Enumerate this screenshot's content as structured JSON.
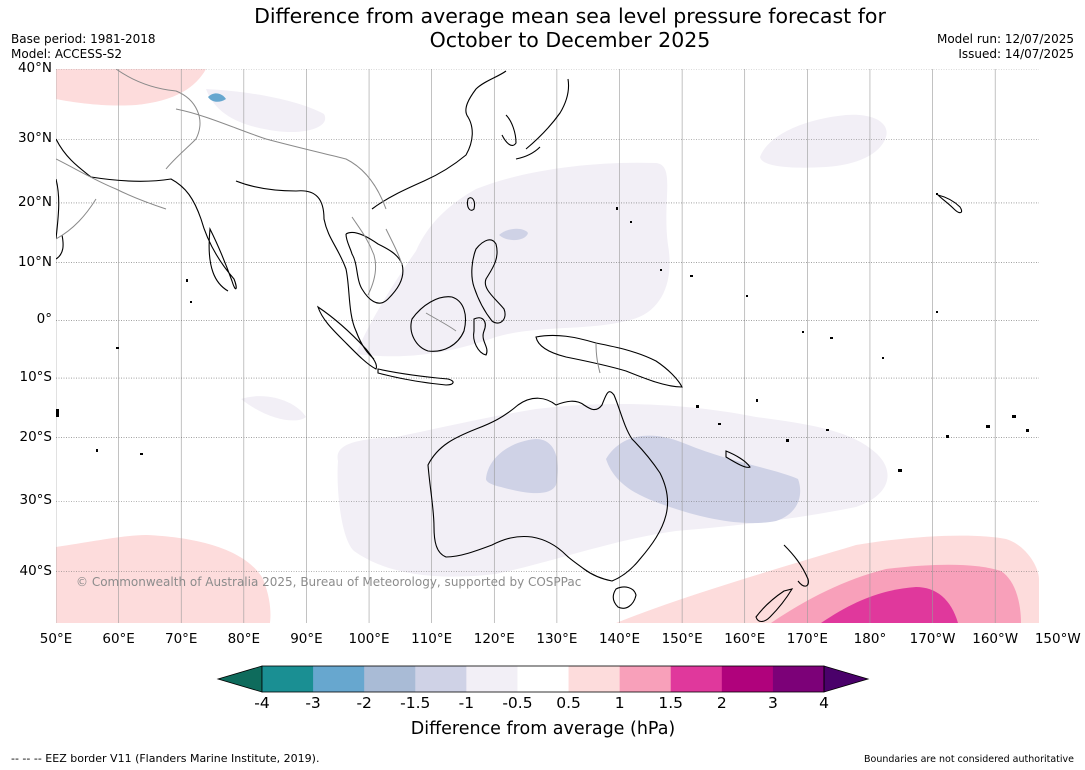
{
  "title_line1": "Difference from average mean sea level pressure forecast for",
  "title_line2": "October to December 2025",
  "base_period": "Base period: 1981-2018",
  "model": "Model: ACCESS-S2",
  "model_run": "Model run: 12/07/2025",
  "issued": "Issued: 14/07/2025",
  "copyright": "© Commonwealth of Australia 2025, Bureau of Meteorology, supported by COSPPac",
  "map": {
    "extent": {
      "lon_min": 50,
      "lon_max": 207,
      "lat_min": -46.5,
      "lat_max": 40
    },
    "lat_labels": [
      {
        "lat": 40,
        "text": "40°N"
      },
      {
        "lat": 30,
        "text": "30°N"
      },
      {
        "lat": 20,
        "text": "20°N"
      },
      {
        "lat": 10,
        "text": "10°N"
      },
      {
        "lat": 0,
        "text": "0°"
      },
      {
        "lat": -10,
        "text": "10°S"
      },
      {
        "lat": -20,
        "text": "20°S"
      },
      {
        "lat": -30,
        "text": "30°S"
      },
      {
        "lat": -40,
        "text": "40°S"
      }
    ],
    "lon_labels": [
      {
        "lon": 50,
        "text": "50°E"
      },
      {
        "lon": 60,
        "text": "60°E"
      },
      {
        "lon": 70,
        "text": "70°E"
      },
      {
        "lon": 80,
        "text": "80°E"
      },
      {
        "lon": 90,
        "text": "90°E"
      },
      {
        "lon": 100,
        "text": "100°E"
      },
      {
        "lon": 110,
        "text": "110°E"
      },
      {
        "lon": 120,
        "text": "120°E"
      },
      {
        "lon": 130,
        "text": "130°E"
      },
      {
        "lon": 140,
        "text": "140°E"
      },
      {
        "lon": 150,
        "text": "150°E"
      },
      {
        "lon": 160,
        "text": "160°E"
      },
      {
        "lon": 170,
        "text": "170°E"
      },
      {
        "lon": 180,
        "text": "180°"
      },
      {
        "lon": 190,
        "text": "170°W"
      },
      {
        "lon": 200,
        "text": "160°W"
      },
      {
        "lon": 210,
        "text": "150°W"
      }
    ]
  },
  "colorbar": {
    "ticks": [
      "-4",
      "-3",
      "-2",
      "-1.5",
      "-1",
      "-0.5",
      "0.5",
      "1",
      "1.5",
      "2",
      "3",
      "4"
    ],
    "colors": [
      "#1a8f93",
      "#67a7cf",
      "#a9bbd6",
      "#cfd2e6",
      "#f2eff6",
      "#ffffff",
      "#fddcdc",
      "#f8a0ba",
      "#e0389c",
      "#b0027c",
      "#7c0178"
    ],
    "under_color": "#0e6b5c",
    "over_color": "#4a016a",
    "label": "Difference from average (hPa)"
  },
  "colors": {
    "shade_weak_neg": "#f2eff6",
    "shade_neg": "#cfd2e6",
    "shade_pos1": "#fddcdc",
    "shade_pos2": "#f8a0ba",
    "shade_pos3": "#e0389c"
  },
  "footer_left": "--  --  -- EEZ border V11 (Flanders Marine Institute, 2019).",
  "footer_right": "Boundaries are not considered authoritative"
}
